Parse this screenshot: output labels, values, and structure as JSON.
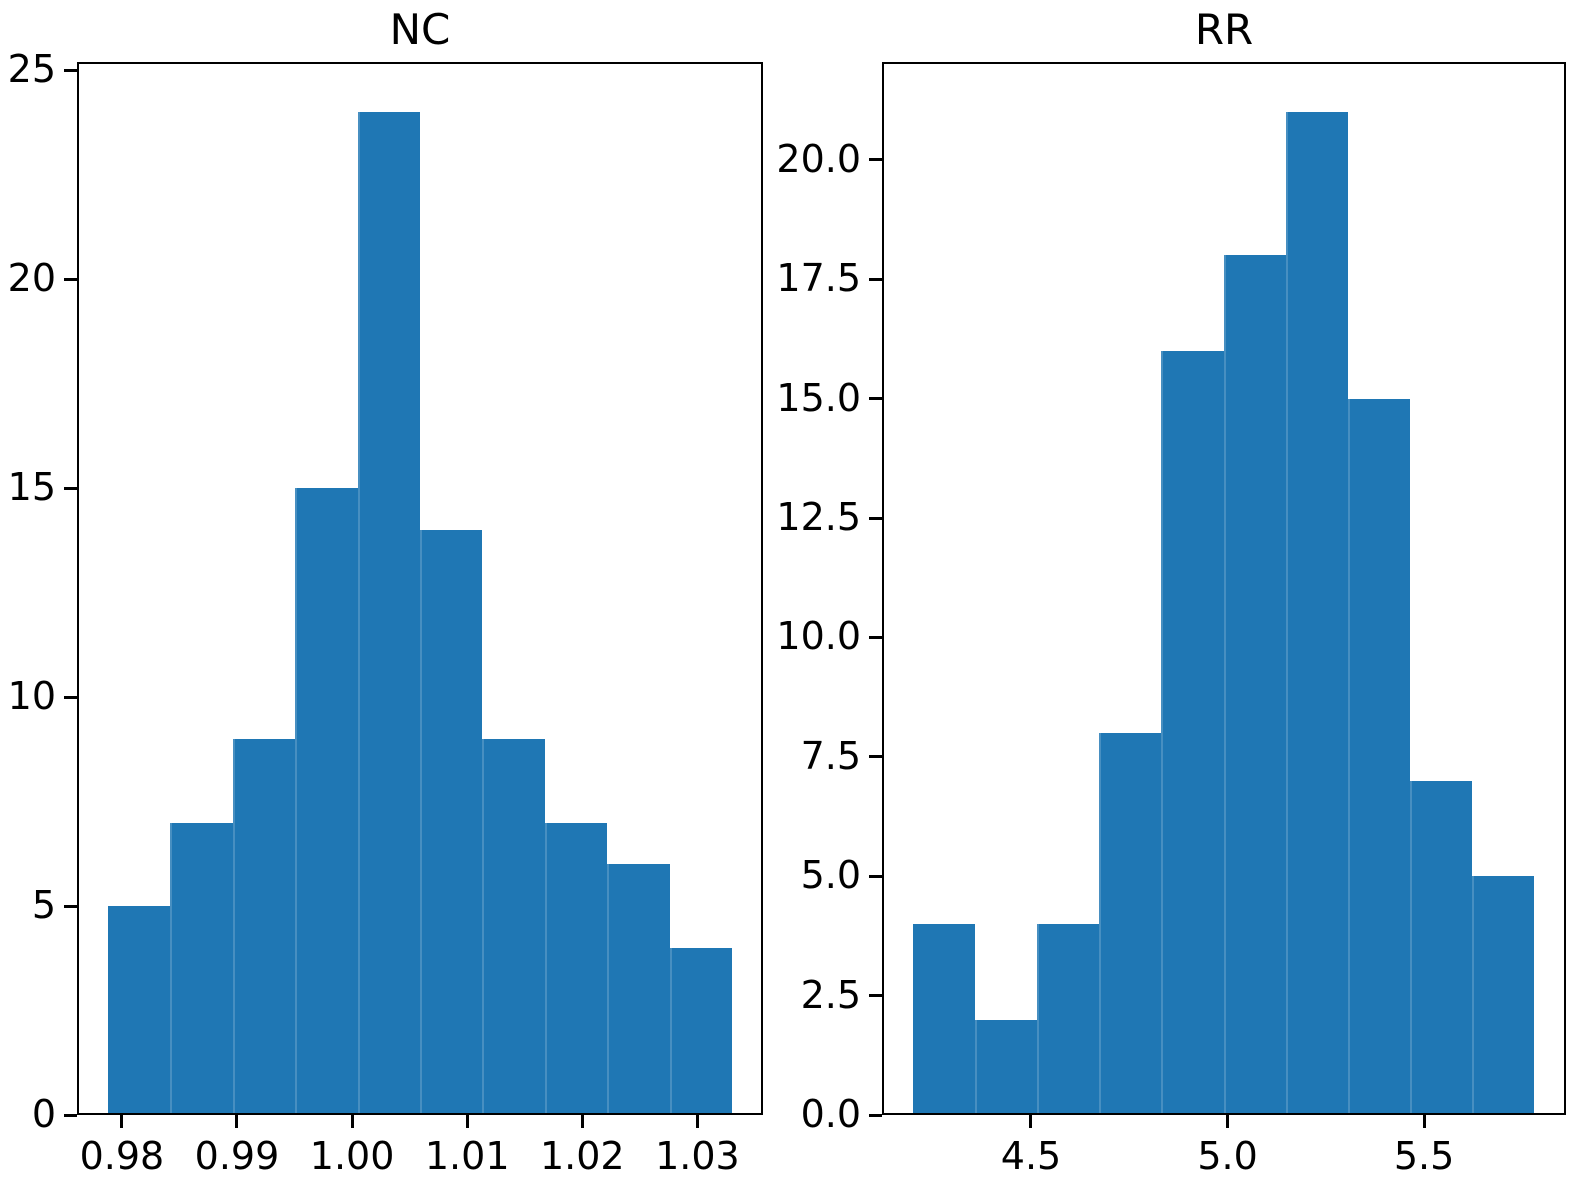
{
  "figure": {
    "background_color": "#ffffff",
    "bar_color": "#1f77b4",
    "axis_color": "#000000"
  },
  "chart_data": [
    {
      "type": "bar",
      "subtype": "histogram",
      "title": "NC",
      "bin_edges": [
        0.9788,
        0.98422,
        0.98964,
        0.99506,
        1.00048,
        1.0059,
        1.01132,
        1.01674,
        1.02216,
        1.02758,
        1.033
      ],
      "counts": [
        5,
        7,
        9,
        15,
        24,
        14,
        9,
        7,
        6,
        4
      ],
      "xlim": [
        0.9761,
        1.0357
      ],
      "ylim": [
        0,
        25.2
      ],
      "grid": false,
      "legend": null,
      "xlabel": "",
      "ylabel": "",
      "x_ticks": [
        {
          "value": 0.98,
          "label": "0.98"
        },
        {
          "value": 0.99,
          "label": "0.99"
        },
        {
          "value": 1.0,
          "label": "1.00"
        },
        {
          "value": 1.01,
          "label": "1.01"
        },
        {
          "value": 1.02,
          "label": "1.02"
        },
        {
          "value": 1.03,
          "label": "1.03"
        }
      ],
      "y_ticks": [
        {
          "value": 0,
          "label": "0"
        },
        {
          "value": 5,
          "label": "5"
        },
        {
          "value": 10,
          "label": "10"
        },
        {
          "value": 15,
          "label": "15"
        },
        {
          "value": 20,
          "label": "20"
        },
        {
          "value": 25,
          "label": "25"
        }
      ]
    },
    {
      "type": "bar",
      "subtype": "histogram",
      "title": "RR",
      "bin_edges": [
        4.2,
        4.358,
        4.516,
        4.674,
        4.832,
        4.99,
        5.148,
        5.306,
        5.464,
        5.622,
        5.78
      ],
      "counts": [
        4,
        2,
        4,
        8,
        16,
        18,
        21,
        15,
        7,
        5
      ],
      "xlim": [
        4.121,
        5.861
      ],
      "ylim": [
        0,
        22.05
      ],
      "grid": false,
      "legend": null,
      "xlabel": "",
      "ylabel": "",
      "x_ticks": [
        {
          "value": 4.5,
          "label": "4.5"
        },
        {
          "value": 5.0,
          "label": "5.0"
        },
        {
          "value": 5.5,
          "label": "5.5"
        }
      ],
      "y_ticks": [
        {
          "value": 0.0,
          "label": "0.0"
        },
        {
          "value": 2.5,
          "label": "2.5"
        },
        {
          "value": 5.0,
          "label": "5.0"
        },
        {
          "value": 7.5,
          "label": "7.5"
        },
        {
          "value": 10.0,
          "label": "10.0"
        },
        {
          "value": 12.5,
          "label": "12.5"
        },
        {
          "value": 15.0,
          "label": "15.0"
        },
        {
          "value": 17.5,
          "label": "17.5"
        },
        {
          "value": 20.0,
          "label": "20.0"
        }
      ]
    }
  ]
}
